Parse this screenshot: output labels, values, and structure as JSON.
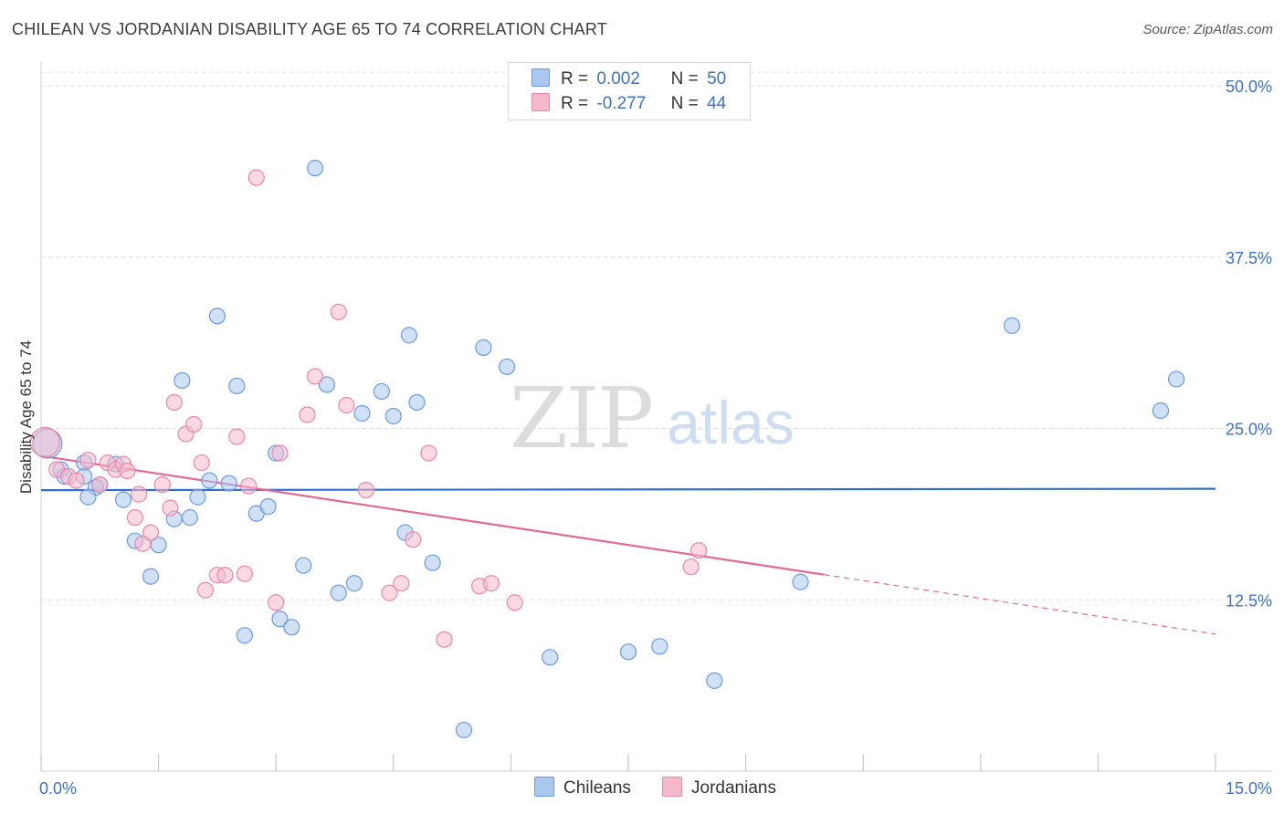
{
  "title": "CHILEAN VS JORDANIAN DISABILITY AGE 65 TO 74 CORRELATION CHART",
  "source": "Source: ZipAtlas.com",
  "watermark": {
    "zip": "ZIP",
    "atlas": "atlas"
  },
  "legend": {
    "rows": [
      {
        "r_label": "R =",
        "r_value": "0.002",
        "n_label": "N =",
        "n_value": "50"
      },
      {
        "r_label": "R =",
        "r_value": "-0.277",
        "n_label": "N =",
        "n_value": "44"
      }
    ]
  },
  "bottom_legend": {
    "chileans": "Chileans",
    "jordanians": "Jordanians"
  },
  "colors": {
    "blue_fill": "#a9c8ee",
    "blue_stroke": "#6a9be0",
    "blue_line": "#2f6fcf",
    "pink_fill": "#f6b9cc",
    "pink_stroke": "#e887a7",
    "pink_line": "#e0689a",
    "tick_label": "#3b72c7",
    "grid": "#dddddd"
  },
  "chart_data": {
    "type": "scatter",
    "title": "CHILEAN VS JORDANIAN DISABILITY AGE 65 TO 74 CORRELATION CHART",
    "xlabel": "",
    "ylabel": "Disability Age 65 to 74",
    "xlim": [
      0,
      15
    ],
    "ylim": [
      0,
      51
    ],
    "x_tick_labels": [
      "0.0%",
      "15.0%"
    ],
    "y_ticks": [
      12.5,
      25.0,
      37.5,
      50.0
    ],
    "y_tick_labels": [
      "12.5%",
      "25.0%",
      "37.5%",
      "50.0%"
    ],
    "series": [
      {
        "name": "Chileans",
        "r": 0.002,
        "n": 50,
        "trend": {
          "x0": 0,
          "y0": 20.5,
          "x1": 15,
          "y1": 20.6,
          "dashed_from": null
        },
        "points": [
          [
            0.08,
            23.9
          ],
          [
            0.25,
            22.0
          ],
          [
            0.3,
            21.5
          ],
          [
            0.55,
            22.5
          ],
          [
            0.75,
            20.9
          ],
          [
            0.95,
            22.4
          ],
          [
            0.55,
            21.5
          ],
          [
            0.7,
            20.7
          ],
          [
            0.6,
            20.0
          ],
          [
            1.05,
            19.8
          ],
          [
            1.2,
            16.8
          ],
          [
            1.5,
            16.5
          ],
          [
            1.4,
            14.2
          ],
          [
            1.7,
            18.4
          ],
          [
            1.8,
            28.5
          ],
          [
            1.9,
            18.5
          ],
          [
            2.0,
            20.0
          ],
          [
            2.15,
            21.2
          ],
          [
            2.25,
            33.2
          ],
          [
            2.4,
            21.0
          ],
          [
            2.5,
            28.1
          ],
          [
            2.6,
            9.9
          ],
          [
            2.75,
            18.8
          ],
          [
            2.9,
            19.3
          ],
          [
            3.0,
            23.2
          ],
          [
            3.05,
            11.1
          ],
          [
            3.2,
            10.5
          ],
          [
            3.35,
            15.0
          ],
          [
            3.5,
            44.0
          ],
          [
            3.65,
            28.2
          ],
          [
            3.8,
            13.0
          ],
          [
            4.0,
            13.7
          ],
          [
            4.1,
            26.1
          ],
          [
            4.35,
            27.7
          ],
          [
            4.5,
            25.9
          ],
          [
            4.7,
            31.8
          ],
          [
            4.65,
            17.4
          ],
          [
            4.8,
            26.9
          ],
          [
            5.0,
            15.2
          ],
          [
            5.4,
            3.0
          ],
          [
            5.65,
            30.9
          ],
          [
            5.95,
            29.5
          ],
          [
            6.5,
            8.3
          ],
          [
            7.5,
            8.7
          ],
          [
            7.9,
            9.1
          ],
          [
            8.6,
            6.6
          ],
          [
            9.7,
            13.8
          ],
          [
            12.4,
            32.5
          ],
          [
            14.3,
            26.3
          ],
          [
            14.5,
            28.6
          ]
        ]
      },
      {
        "name": "Jordanians",
        "r": -0.277,
        "n": 44,
        "trend": {
          "x0": 0,
          "y0": 23.0,
          "x1": 15,
          "y1": 10.0,
          "dashed_from": 10.0
        },
        "points": [
          [
            0.05,
            24.0
          ],
          [
            0.2,
            22.0
          ],
          [
            0.35,
            21.5
          ],
          [
            0.45,
            21.2
          ],
          [
            0.6,
            22.7
          ],
          [
            0.75,
            20.9
          ],
          [
            0.85,
            22.5
          ],
          [
            0.95,
            22.0
          ],
          [
            1.05,
            22.4
          ],
          [
            1.1,
            21.9
          ],
          [
            1.2,
            18.5
          ],
          [
            1.3,
            16.6
          ],
          [
            1.25,
            20.2
          ],
          [
            1.4,
            17.4
          ],
          [
            1.55,
            20.9
          ],
          [
            1.65,
            19.2
          ],
          [
            1.7,
            26.9
          ],
          [
            1.85,
            24.6
          ],
          [
            1.95,
            25.3
          ],
          [
            2.05,
            22.5
          ],
          [
            2.1,
            13.2
          ],
          [
            2.25,
            14.3
          ],
          [
            2.35,
            14.3
          ],
          [
            2.5,
            24.4
          ],
          [
            2.6,
            14.4
          ],
          [
            2.65,
            20.8
          ],
          [
            2.75,
            43.3
          ],
          [
            3.0,
            12.3
          ],
          [
            3.05,
            23.2
          ],
          [
            3.4,
            26.0
          ],
          [
            3.5,
            28.8
          ],
          [
            3.8,
            33.5
          ],
          [
            3.9,
            26.7
          ],
          [
            4.15,
            20.5
          ],
          [
            4.45,
            13.0
          ],
          [
            4.6,
            13.7
          ],
          [
            4.75,
            16.9
          ],
          [
            4.95,
            23.2
          ],
          [
            5.15,
            9.6
          ],
          [
            5.6,
            13.5
          ],
          [
            5.75,
            13.7
          ],
          [
            6.05,
            12.3
          ],
          [
            8.4,
            16.1
          ],
          [
            8.3,
            14.9
          ]
        ]
      }
    ]
  }
}
